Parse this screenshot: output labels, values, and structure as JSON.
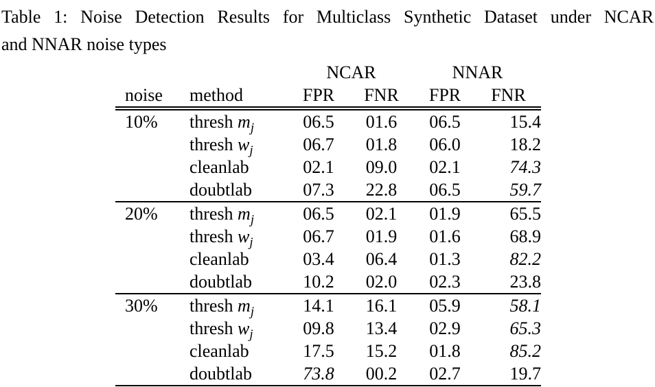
{
  "caption": {
    "line1": "Table 1: Noise Detection Results for Multiclass Synthetic Dataset under NCAR",
    "line2": "and NNAR noise types"
  },
  "colors": {
    "background": "#ffffff",
    "text": "#000000",
    "rule": "#000000"
  },
  "table": {
    "group_headers": [
      "NCAR",
      "NNAR"
    ],
    "column_headers": [
      "noise",
      "method",
      "FPR",
      "FNR",
      "FPR",
      "FNR"
    ],
    "blocks": [
      {
        "noise": "10%",
        "rows": [
          {
            "method": {
              "text": "thresh ",
              "var": "m",
              "sub": "j"
            },
            "cells": [
              {
                "v": "06.5",
                "cls": ""
              },
              {
                "v": "01.6",
                "cls": ""
              },
              {
                "v": "06.5",
                "cls": ""
              },
              {
                "v": "15.4",
                "cls": ""
              }
            ]
          },
          {
            "method": {
              "text": "thresh ",
              "var": "w",
              "sub": "j"
            },
            "cells": [
              {
                "v": "06.7",
                "cls": ""
              },
              {
                "v": "01.8",
                "cls": ""
              },
              {
                "v": "06.0",
                "cls": ""
              },
              {
                "v": "18.2",
                "cls": ""
              }
            ]
          },
          {
            "method": {
              "text": "cleanlab",
              "var": "",
              "sub": ""
            },
            "cells": [
              {
                "v": "02.1",
                "cls": ""
              },
              {
                "v": "09.0",
                "cls": ""
              },
              {
                "v": "02.1",
                "cls": ""
              },
              {
                "v": "74.3",
                "cls": "it"
              }
            ]
          },
          {
            "method": {
              "text": "doubtlab",
              "var": "",
              "sub": ""
            },
            "cells": [
              {
                "v": "07.3",
                "cls": ""
              },
              {
                "v": "22.8",
                "cls": ""
              },
              {
                "v": "06.5",
                "cls": ""
              },
              {
                "v": "59.7",
                "cls": "it"
              }
            ]
          }
        ]
      },
      {
        "noise": "20%",
        "rows": [
          {
            "method": {
              "text": "thresh ",
              "var": "m",
              "sub": "j"
            },
            "cells": [
              {
                "v": "06.5",
                "cls": ""
              },
              {
                "v": "02.1",
                "cls": ""
              },
              {
                "v": "01.9",
                "cls": ""
              },
              {
                "v": "65.5",
                "cls": ""
              }
            ]
          },
          {
            "method": {
              "text": "thresh ",
              "var": "w",
              "sub": "j"
            },
            "cells": [
              {
                "v": "06.7",
                "cls": ""
              },
              {
                "v": "01.9",
                "cls": ""
              },
              {
                "v": "01.6",
                "cls": ""
              },
              {
                "v": "68.9",
                "cls": ""
              }
            ]
          },
          {
            "method": {
              "text": "cleanlab",
              "var": "",
              "sub": ""
            },
            "cells": [
              {
                "v": "03.4",
                "cls": ""
              },
              {
                "v": "06.4",
                "cls": ""
              },
              {
                "v": "01.3",
                "cls": ""
              },
              {
                "v": "82.2",
                "cls": "it"
              }
            ]
          },
          {
            "method": {
              "text": "doubtlab",
              "var": "",
              "sub": ""
            },
            "cells": [
              {
                "v": "10.2",
                "cls": ""
              },
              {
                "v": "02.0",
                "cls": ""
              },
              {
                "v": "02.3",
                "cls": ""
              },
              {
                "v": "23.8",
                "cls": ""
              }
            ]
          }
        ]
      },
      {
        "noise": "30%",
        "rows": [
          {
            "method": {
              "text": "thresh ",
              "var": "m",
              "sub": "j"
            },
            "cells": [
              {
                "v": "14.1",
                "cls": ""
              },
              {
                "v": "16.1",
                "cls": ""
              },
              {
                "v": "05.9",
                "cls": ""
              },
              {
                "v": "58.1",
                "cls": "it"
              }
            ]
          },
          {
            "method": {
              "text": "thresh ",
              "var": "w",
              "sub": "j"
            },
            "cells": [
              {
                "v": "09.8",
                "cls": ""
              },
              {
                "v": "13.4",
                "cls": ""
              },
              {
                "v": "02.9",
                "cls": ""
              },
              {
                "v": "65.3",
                "cls": "it"
              }
            ]
          },
          {
            "method": {
              "text": "cleanlab",
              "var": "",
              "sub": ""
            },
            "cells": [
              {
                "v": "17.5",
                "cls": ""
              },
              {
                "v": "15.2",
                "cls": ""
              },
              {
                "v": "01.8",
                "cls": ""
              },
              {
                "v": "85.2",
                "cls": "it"
              }
            ]
          },
          {
            "method": {
              "text": "doubtlab",
              "var": "",
              "sub": ""
            },
            "cells": [
              {
                "v": "73.8",
                "cls": "it"
              },
              {
                "v": "00.2",
                "cls": ""
              },
              {
                "v": "02.7",
                "cls": ""
              },
              {
                "v": "19.7",
                "cls": ""
              }
            ]
          }
        ]
      }
    ]
  }
}
